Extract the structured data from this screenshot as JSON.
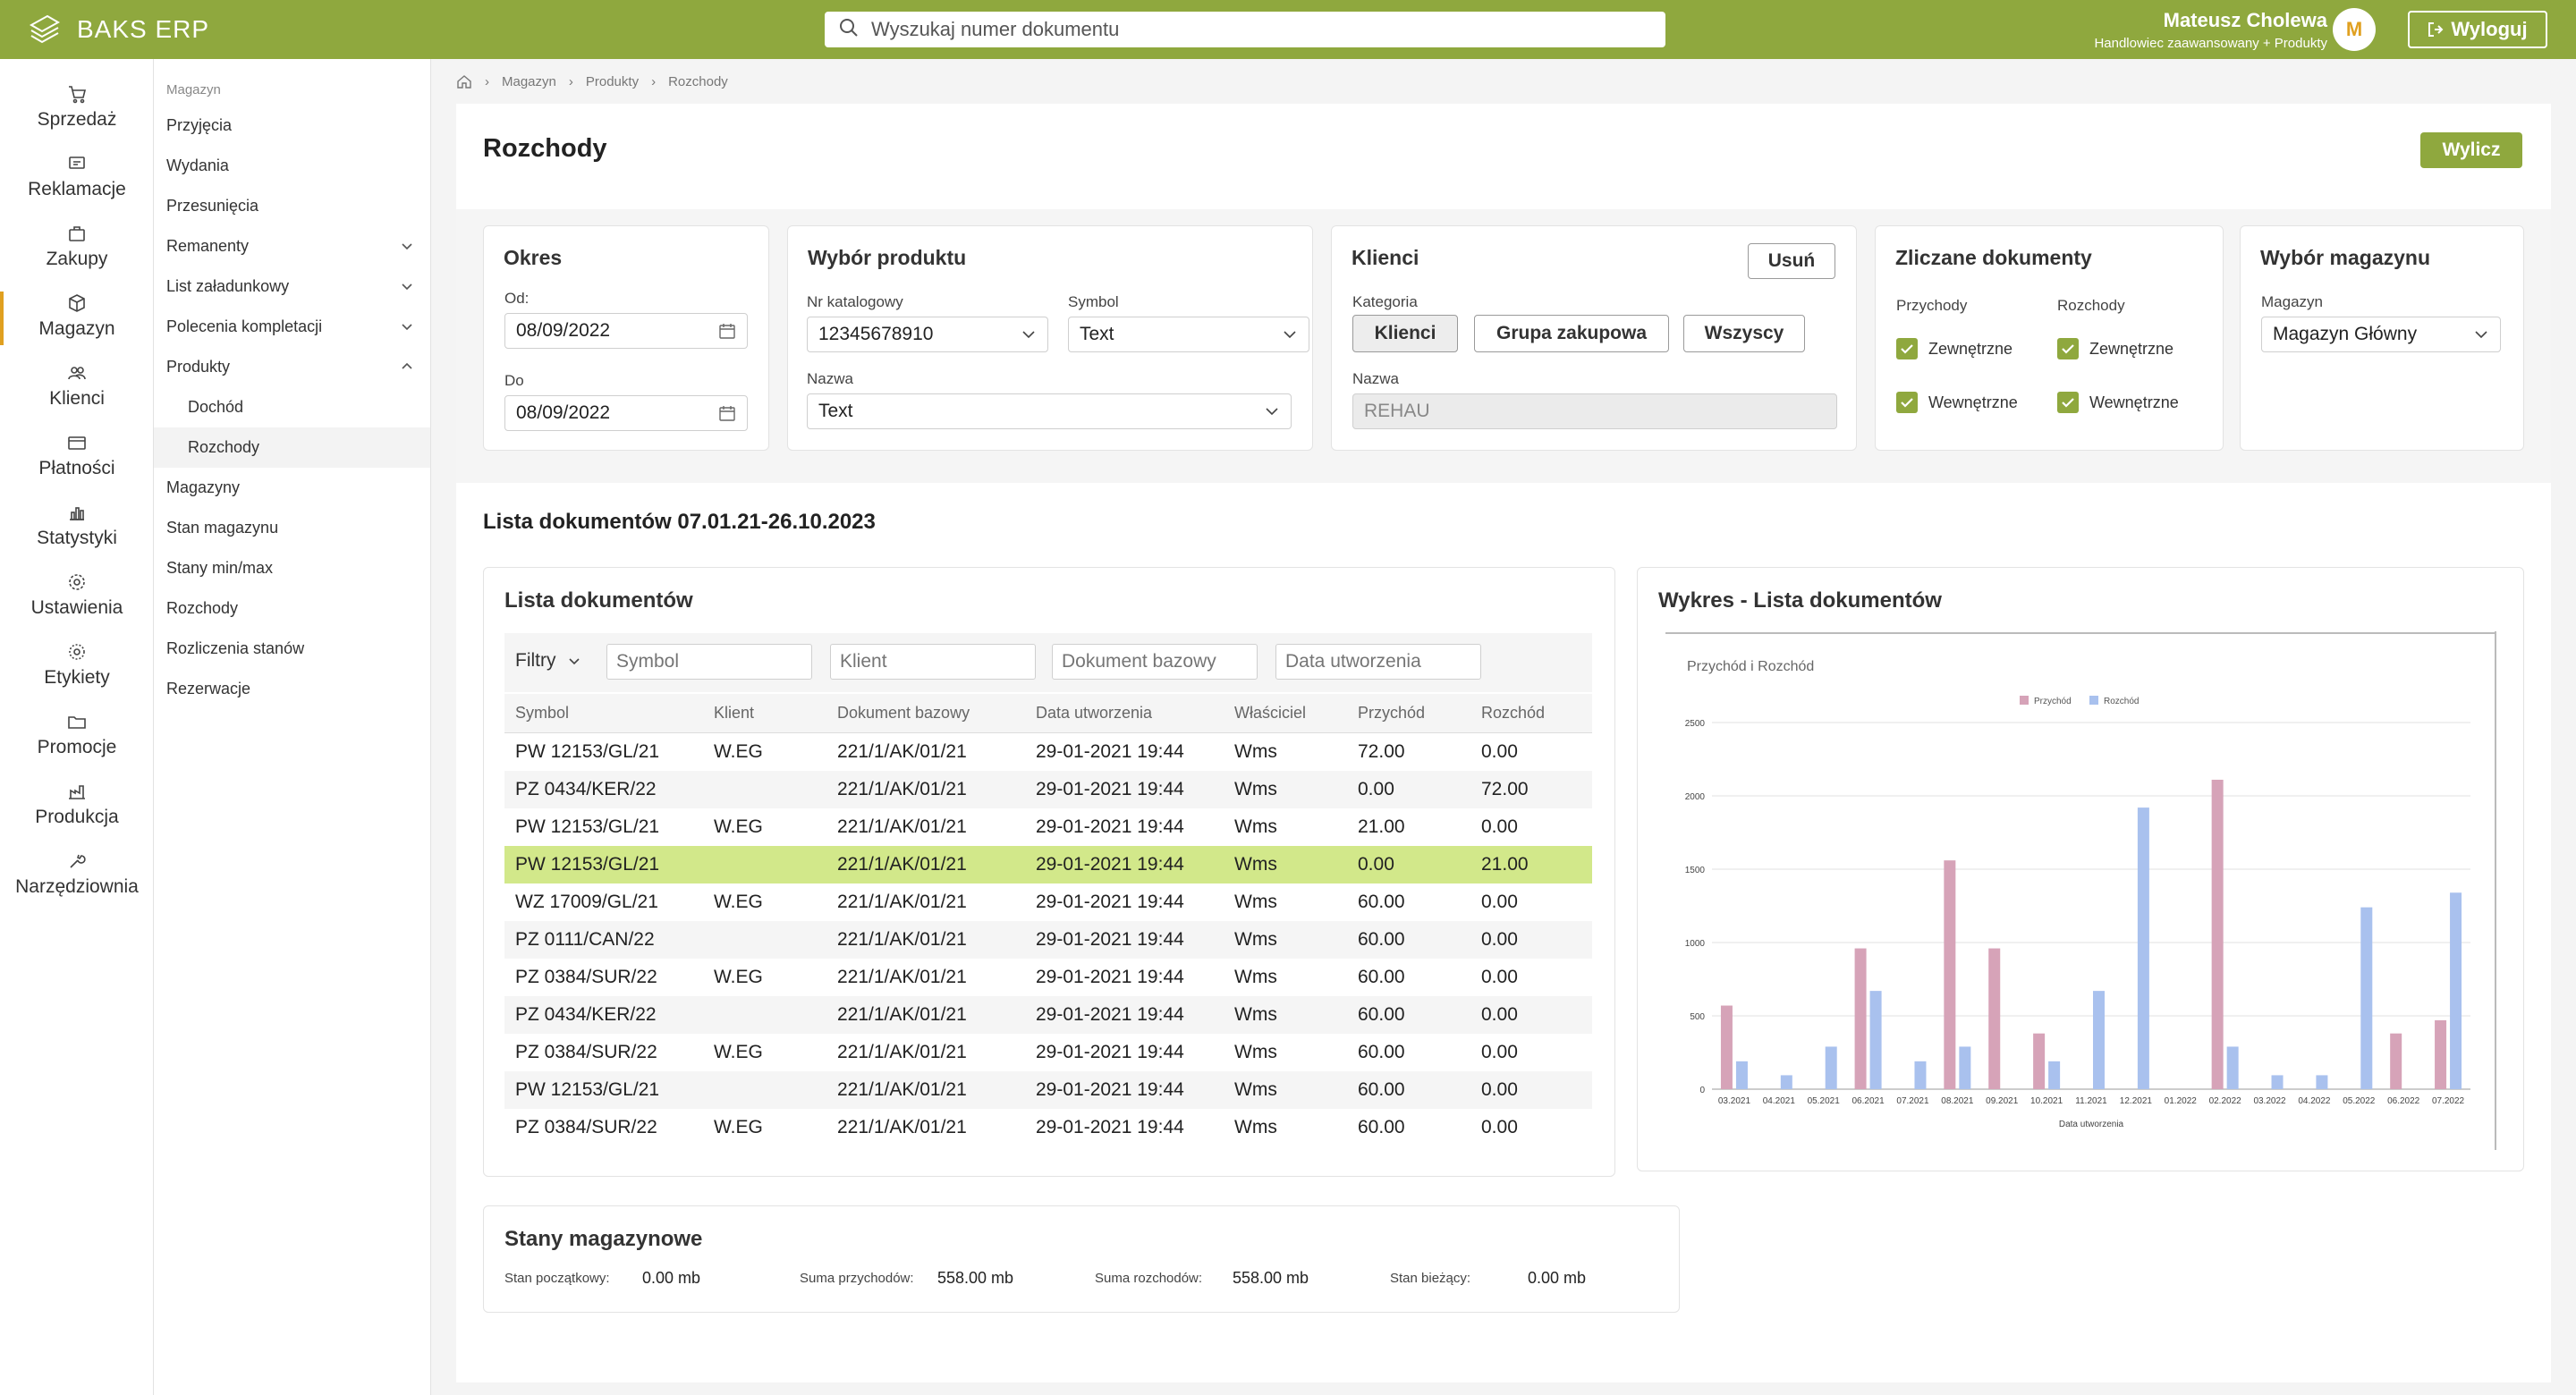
{
  "app": {
    "title": "BAKS ERP"
  },
  "search": {
    "placeholder": "Wyszukaj numer dokumentu"
  },
  "user": {
    "name": "Mateusz Cholewa",
    "role": "Handlowiec zaawansowany + Produkty",
    "initial": "M"
  },
  "logout_label": "Wyloguj",
  "rail": [
    {
      "label": "Sprzedaż",
      "icon": "cart-icon"
    },
    {
      "label": "Reklamacje",
      "icon": "message-icon"
    },
    {
      "label": "Zakupy",
      "icon": "bag-icon"
    },
    {
      "label": "Magazyn",
      "icon": "box-icon",
      "active": true
    },
    {
      "label": "Klienci",
      "icon": "users-icon"
    },
    {
      "label": "Płatności",
      "icon": "wallet-icon"
    },
    {
      "label": "Statystyki",
      "icon": "stats-icon"
    },
    {
      "label": "Ustawienia",
      "icon": "gear-icon"
    },
    {
      "label": "Etykiety",
      "icon": "tag-icon"
    },
    {
      "label": "Promocje",
      "icon": "folder-icon"
    },
    {
      "label": "Produkcja",
      "icon": "factory-icon"
    },
    {
      "label": "Narzędziownia",
      "icon": "wrench-icon"
    }
  ],
  "subnav": {
    "header": "Magazyn",
    "items": [
      {
        "label": "Przyjęcia"
      },
      {
        "label": "Wydania"
      },
      {
        "label": "Przesunięcia"
      },
      {
        "label": "Remanenty",
        "chevron": "down"
      },
      {
        "label": "List załadunkowy",
        "chevron": "down"
      },
      {
        "label": "Polecenia kompletacji",
        "chevron": "down"
      },
      {
        "label": "Produkty",
        "chevron": "up"
      },
      {
        "label": "Dochód",
        "child": true
      },
      {
        "label": "Rozchody",
        "child": true,
        "selected": true
      },
      {
        "label": "Magazyny"
      },
      {
        "label": "Stan magazynu"
      },
      {
        "label": "Stany min/max"
      },
      {
        "label": "Rozchody"
      },
      {
        "label": "Rozliczenia stanów"
      },
      {
        "label": "Rezerwacje"
      }
    ]
  },
  "breadcrumb": [
    "Magazyn",
    "Produkty",
    "Rozchody"
  ],
  "page": {
    "title": "Rozchody",
    "calc_button": "Wylicz"
  },
  "okres": {
    "title": "Okres",
    "from_label": "Od:",
    "from_value": "08/09/2022",
    "to_label": "Do",
    "to_value": "08/09/2022"
  },
  "produkt": {
    "title": "Wybór produktu",
    "catalog_label": "Nr katalogowy",
    "catalog_value": "12345678910",
    "symbol_label": "Symbol",
    "symbol_value": "Text",
    "name_label": "Nazwa",
    "name_value": "Text"
  },
  "klienci": {
    "title": "Klienci",
    "remove_button": "Usuń",
    "category_label": "Kategoria",
    "pills": [
      "Klienci",
      "Grupa zakupowa",
      "Wszyscy"
    ],
    "name_label": "Nazwa",
    "name_value": "REHAU"
  },
  "zliczane": {
    "title": "Zliczane dokumenty",
    "col1": "Przychody",
    "col2": "Rozchody",
    "opt_ext": "Zewnętrzne",
    "opt_int": "Wewnętrzne"
  },
  "magazyn": {
    "title": "Wybór magazynu",
    "label": "Magazyn",
    "value": "Magazyn Główny"
  },
  "list_section_title": "Lista dokumentów 07.01.21-26.10.2023",
  "docs": {
    "title": "Lista dokumentów",
    "filters_label": "Filtry",
    "filter_placeholders": [
      "Symbol",
      "Klient",
      "Dokument bazowy",
      "Data utworzenia"
    ],
    "columns": [
      "Symbol",
      "Klient",
      "Dokument bazowy",
      "Data utworzenia",
      "Właściciel",
      "Przychód",
      "Rozchód"
    ],
    "rows": [
      [
        "PW 12153/GL/21",
        "W.EG",
        "221/1/AK/01/21",
        "29-01-2021 19:44",
        "Wms",
        "72.00",
        "0.00"
      ],
      [
        "PZ 0434/KER/22",
        "",
        "221/1/AK/01/21",
        "29-01-2021 19:44",
        "Wms",
        "0.00",
        "72.00"
      ],
      [
        "PW 12153/GL/21",
        "W.EG",
        "221/1/AK/01/21",
        "29-01-2021 19:44",
        "Wms",
        "21.00",
        "0.00"
      ],
      [
        "PW 12153/GL/21",
        "",
        "221/1/AK/01/21",
        "29-01-2021 19:44",
        "Wms",
        "0.00",
        "21.00"
      ],
      [
        "WZ 17009/GL/21",
        "W.EG",
        "221/1/AK/01/21",
        "29-01-2021 19:44",
        "Wms",
        "60.00",
        "0.00"
      ],
      [
        "PZ 0111/CAN/22",
        "",
        "221/1/AK/01/21",
        "29-01-2021 19:44",
        "Wms",
        "60.00",
        "0.00"
      ],
      [
        "PZ 0384/SUR/22",
        "W.EG",
        "221/1/AK/01/21",
        "29-01-2021 19:44",
        "Wms",
        "60.00",
        "0.00"
      ],
      [
        "PZ 0434/KER/22",
        "",
        "221/1/AK/01/21",
        "29-01-2021 19:44",
        "Wms",
        "60.00",
        "0.00"
      ],
      [
        "PZ 0384/SUR/22",
        "W.EG",
        "221/1/AK/01/21",
        "29-01-2021 19:44",
        "Wms",
        "60.00",
        "0.00"
      ],
      [
        "PW 12153/GL/21",
        "",
        "221/1/AK/01/21",
        "29-01-2021 19:44",
        "Wms",
        "60.00",
        "0.00"
      ],
      [
        "PZ 0384/SUR/22",
        "W.EG",
        "221/1/AK/01/21",
        "29-01-2021 19:44",
        "Wms",
        "60.00",
        "0.00"
      ]
    ],
    "highlighted_row": 3
  },
  "chart_panel_title": "Wykres - Lista dokumentów",
  "chart_data": {
    "type": "bar",
    "title": "Przychód  i Rozchód",
    "xlabel": "Data utworzenia",
    "ylabel": "",
    "ylim": [
      0,
      2500
    ],
    "yticks": [
      0,
      500,
      1000,
      1500,
      2000,
      2500
    ],
    "grid": true,
    "legend_position": "top",
    "categories": [
      "03.2021",
      "04.2021",
      "05.2021",
      "06.2021",
      "07.2021",
      "08.2021",
      "09.2021",
      "10.2021",
      "11.2021",
      "12.2021",
      "01.2022",
      "02.2022",
      "03.2022",
      "04.2022",
      "05.2022",
      "06.2022",
      "07.2022"
    ],
    "series": [
      {
        "name": "Przychód",
        "color": "#d6a3b8",
        "values": [
          570,
          0,
          0,
          960,
          0,
          1560,
          960,
          380,
          0,
          0,
          0,
          2110,
          0,
          0,
          0,
          380,
          470
        ]
      },
      {
        "name": "Rozchód",
        "color": "#a9c1ee",
        "values": [
          190,
          95,
          290,
          670,
          190,
          290,
          0,
          190,
          670,
          1920,
          0,
          290,
          95,
          95,
          1240,
          0,
          1340
        ]
      }
    ]
  },
  "stany": {
    "title": "Stany magazynowe",
    "items": [
      {
        "label": "Stan początkowy:",
        "value": "0.00 mb"
      },
      {
        "label": "Suma przychodów:",
        "value": "558.00 mb"
      },
      {
        "label": "Suma rozchodów:",
        "value": "558.00 mb"
      },
      {
        "label": "Stan bieżący:",
        "value": "0.00 mb"
      }
    ]
  },
  "colors": {
    "brand": "#8fa83e",
    "accent": "#e0a020",
    "highlight": "#d2e88a"
  }
}
